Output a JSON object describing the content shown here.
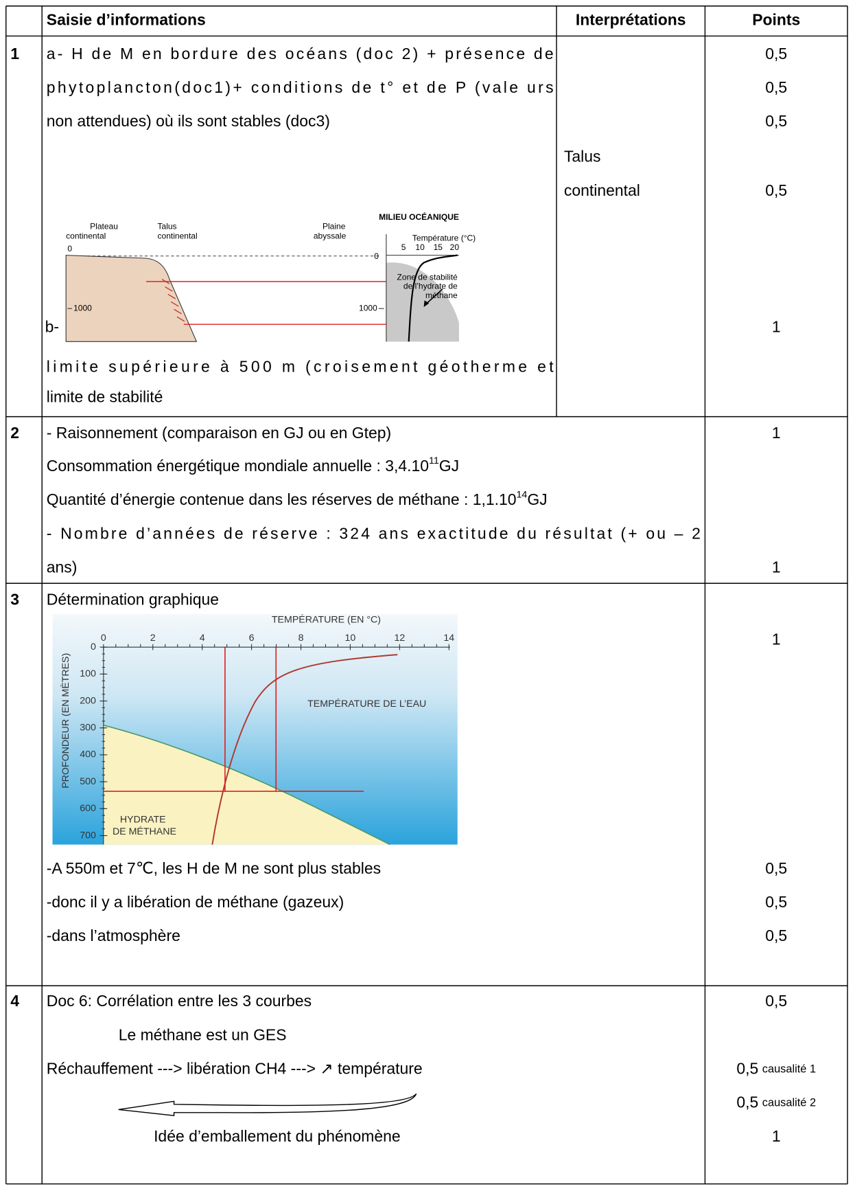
{
  "table": {
    "header": [
      "Saisie d’informations",
      "Interprétations",
      "Points"
    ],
    "rows": [
      {
        "number": "1",
        "content": [
          "a- H de M en bordure des océans (doc 2) + présence de",
          "phytoplancton(doc1)+ conditions de t° et de P (vale urs",
          "non attendues) où ils sont stables (doc3)",
          "b-",
          "limite supérieure à 500 m (croisement géotherme et",
          "limite de stabilité"
        ],
        "interpretation": [
          "Talus",
          "continental"
        ],
        "points": [
          "0,5",
          "0,5",
          "0,5",
          "0,5",
          "1"
        ]
      },
      {
        "number": "2",
        "content": [
          "- Raisonnement (comparaison en GJ ou en Gtep)",
          {
            "text": "Consommation énergétique mondiale annuelle : 3,4.10",
            "exponent": "11",
            "unit": "GJ"
          },
          {
            "text": "Quantité d’énergie contenue dans les réserves de méthane : 1,1.10",
            "exponent": "14",
            "unit": "GJ"
          },
          "- Nombre d’années de réserve : 324 ans  exactitude du résultat (+ ou – 2",
          "ans)"
        ],
        "points": [
          "1",
          "1"
        ]
      },
      {
        "number": "3",
        "content": [
          "Détermination graphique",
          "-A 550m et 7℃, les H de M ne sont plus stables",
          "-donc il y a libération de méthane (gazeux)",
          "-dans l’atmosphère"
        ],
        "points": [
          "1",
          "0,5",
          "0,5",
          "0,5"
        ]
      },
      {
        "number": "4",
        "content": [
          "Doc 6: Corrélation entre les 3 courbes",
          "Le méthane est un GES",
          "Réchauffement  ---> libération CH4  ---> ↗ température",
          "Idée d’emballement du phénomène"
        ],
        "points": [
          {
            "value": "0,5"
          },
          {
            "value": "0,5",
            "note": "causalité 1"
          },
          {
            "value": "0,5",
            "note": "causalité 2"
          },
          {
            "value": "1"
          }
        ]
      }
    ]
  },
  "figures": {
    "ocean_profile": {
      "labels": [
        "Plateau",
        "continental",
        "Talus",
        "continental",
        "Plaine",
        "abyssale"
      ],
      "title": "MILIEU OCÉANIQUE",
      "axis_label": "Température (°C)",
      "ticks": [
        "5",
        "10",
        "15",
        "20"
      ],
      "depths": [
        "0",
        "0",
        "1000",
        "1000"
      ],
      "zone": [
        "Zone de stabilité",
        "de l’hydrate de",
        "méthane"
      ]
    },
    "stability_graph": {
      "title": "TEMPÉRATURE (EN °C)",
      "x_ticks": [
        "0",
        "2",
        "4",
        "6",
        "8",
        "10",
        "12",
        "14"
      ],
      "y_label": "PROFONDEUR (EN MÈTRES)",
      "y_ticks": [
        "0",
        "100",
        "200",
        "300",
        "400",
        "500",
        "600",
        "700"
      ],
      "water_label": "TEMPÉRATURE DE L’EAU",
      "hydrate_label": [
        "HYDRATE",
        "DE MÉTHANE"
      ]
    }
  }
}
